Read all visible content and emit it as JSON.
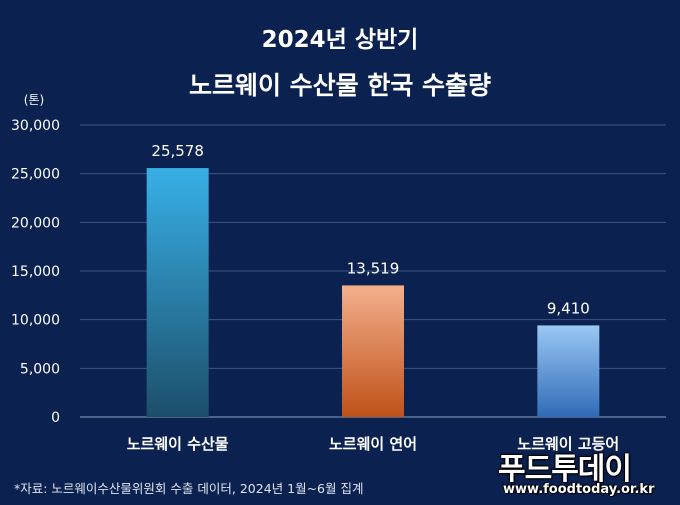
{
  "chart_data": {
    "type": "bar",
    "title_line1": "2024년 상반기",
    "title_line2": "노르웨이 수산물 한국 수출량",
    "ylabel": "(톤)",
    "ylim": [
      0,
      30000
    ],
    "yticks": [
      0,
      5000,
      10000,
      15000,
      20000,
      25000,
      30000
    ],
    "ytick_labels": [
      "0",
      "5,000",
      "10,000",
      "15,000",
      "20,000",
      "25,000",
      "30,000"
    ],
    "grid": true,
    "categories": [
      "노르웨이 수산물",
      "노르웨이 연어",
      "노르웨이 고등어"
    ],
    "values": [
      25578,
      13519,
      9410
    ],
    "value_labels": [
      "25,578",
      "13,519",
      "9,410"
    ],
    "bar_colors": [
      [
        "#37b0e6",
        "#1c4e6a"
      ],
      [
        "#f3b08d",
        "#bf5118"
      ],
      [
        "#9ac8f4",
        "#2f6bb7"
      ]
    ]
  },
  "source_note": "*자료: 노르웨이수산물위원회 수출 데이터, 2024년 1월~6월 집계",
  "watermark": {
    "brand": "푸드투데이",
    "url": "www.foodtoday.or.kr"
  },
  "colors": {
    "background": "#0b2150",
    "grid": "#3c5582",
    "text": "#ffffff"
  }
}
